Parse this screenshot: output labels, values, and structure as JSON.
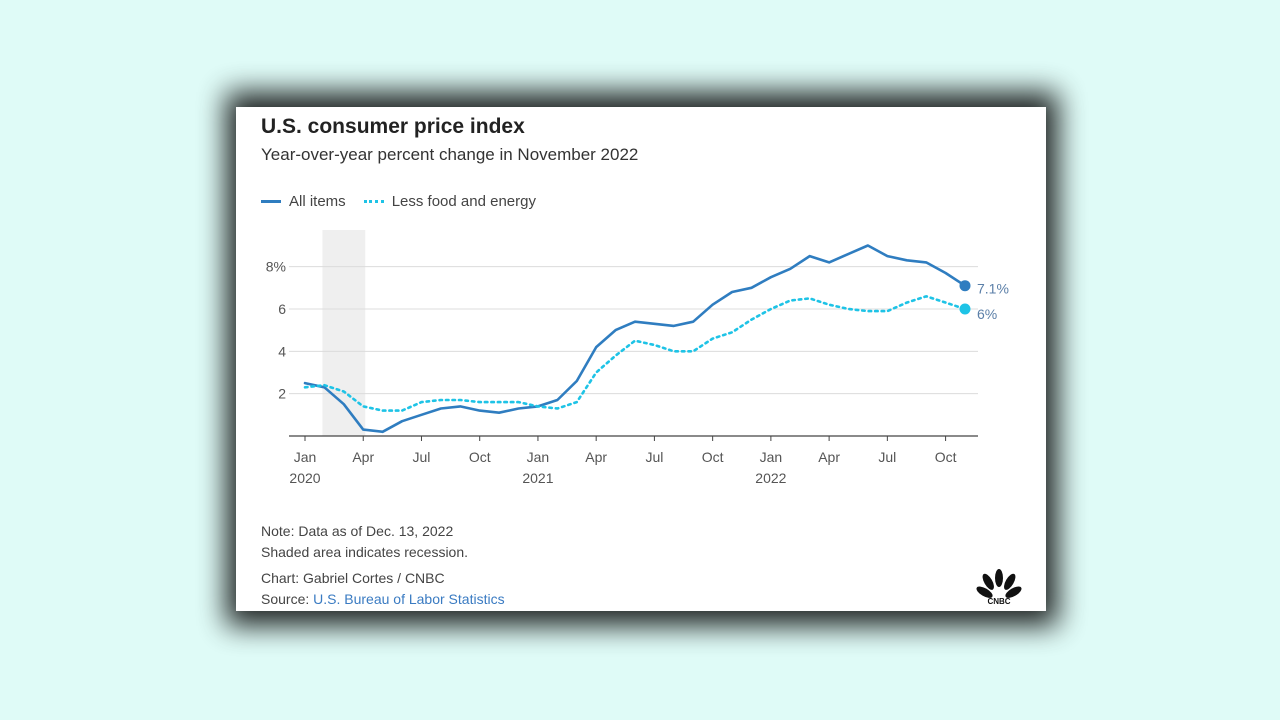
{
  "title": "U.S. consumer price index",
  "subtitle": "Year-over-year percent change in November 2022",
  "legend": {
    "series1": "All items",
    "series2": "Less food and energy"
  },
  "notes": {
    "note": "Note: Data as of Dec. 13, 2022",
    "shaded": "Shaded area indicates recession.",
    "credit": "Chart: Gabriel Cortes / CNBC",
    "source_prefix": "Source: ",
    "source_link": "U.S. Bureau of Labor Statistics"
  },
  "logo_text": "CNBC",
  "colors": {
    "all_items": "#2f7dc0",
    "core": "#1ec3e6",
    "recession": "#efefef"
  },
  "chart_data": {
    "type": "line",
    "title": "U.S. consumer price index",
    "subtitle": "Year-over-year percent change in November 2022",
    "x": [
      "2020-01",
      "2020-02",
      "2020-03",
      "2020-04",
      "2020-05",
      "2020-06",
      "2020-07",
      "2020-08",
      "2020-09",
      "2020-10",
      "2020-11",
      "2020-12",
      "2021-01",
      "2021-02",
      "2021-03",
      "2021-04",
      "2021-05",
      "2021-06",
      "2021-07",
      "2021-08",
      "2021-09",
      "2021-10",
      "2021-11",
      "2021-12",
      "2022-01",
      "2022-02",
      "2022-03",
      "2022-04",
      "2022-05",
      "2022-06",
      "2022-07",
      "2022-08",
      "2022-09",
      "2022-10",
      "2022-11"
    ],
    "series": [
      {
        "name": "All items",
        "style": "solid",
        "values": [
          2.5,
          2.3,
          1.5,
          0.3,
          0.2,
          0.7,
          1.0,
          1.3,
          1.4,
          1.2,
          1.1,
          1.3,
          1.4,
          1.7,
          2.6,
          4.2,
          5.0,
          5.4,
          5.3,
          5.2,
          5.4,
          6.2,
          6.8,
          7.0,
          7.5,
          7.9,
          8.5,
          8.2,
          8.6,
          9.0,
          8.5,
          8.3,
          8.2,
          7.7,
          7.1
        ]
      },
      {
        "name": "Less food and energy",
        "style": "dotted",
        "values": [
          2.3,
          2.4,
          2.1,
          1.4,
          1.2,
          1.2,
          1.6,
          1.7,
          1.7,
          1.6,
          1.6,
          1.6,
          1.4,
          1.3,
          1.6,
          3.0,
          3.8,
          4.5,
          4.3,
          4.0,
          4.0,
          4.6,
          4.9,
          5.5,
          6.0,
          6.4,
          6.5,
          6.2,
          6.0,
          5.9,
          5.9,
          6.3,
          6.6,
          6.3,
          6.0
        ]
      }
    ],
    "end_labels": [
      "7.1%",
      "6%"
    ],
    "y_ticks": [
      2,
      4,
      6,
      8
    ],
    "y_tick_labels": [
      "2",
      "4",
      "6",
      "8%"
    ],
    "ylim": [
      0,
      9.4
    ],
    "x_ticks": [
      {
        "index": 0,
        "label": "Jan",
        "year": "2020"
      },
      {
        "index": 3,
        "label": "Apr",
        "year": ""
      },
      {
        "index": 6,
        "label": "Jul",
        "year": ""
      },
      {
        "index": 9,
        "label": "Oct",
        "year": ""
      },
      {
        "index": 12,
        "label": "Jan",
        "year": "2021"
      },
      {
        "index": 15,
        "label": "Apr",
        "year": ""
      },
      {
        "index": 18,
        "label": "Jul",
        "year": ""
      },
      {
        "index": 21,
        "label": "Oct",
        "year": ""
      },
      {
        "index": 24,
        "label": "Jan",
        "year": "2022"
      },
      {
        "index": 27,
        "label": "Apr",
        "year": ""
      },
      {
        "index": 30,
        "label": "Jul",
        "year": ""
      },
      {
        "index": 33,
        "label": "Oct",
        "year": ""
      }
    ],
    "recession": {
      "start": "2020-02",
      "end": "2020-04"
    },
    "grid": true,
    "legend_position": "top-left"
  }
}
